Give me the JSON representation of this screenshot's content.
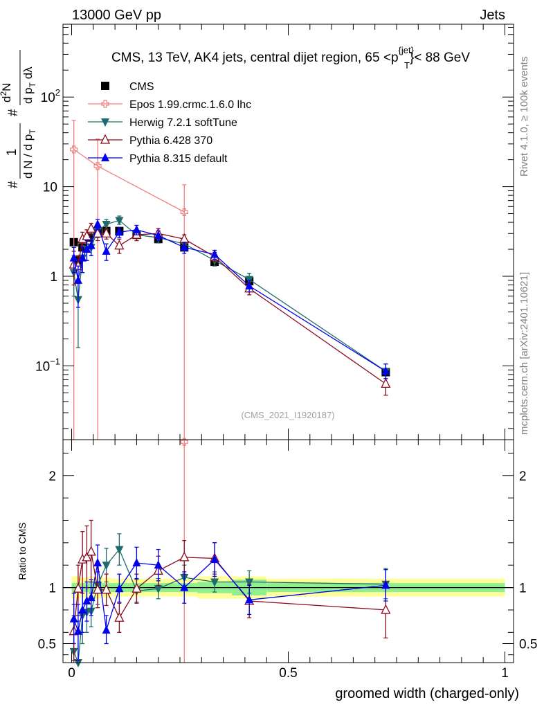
{
  "header": {
    "left": "13000 GeV pp",
    "right": "Jets"
  },
  "side_labels": {
    "rivet": "Rivet 4.1.0, ≥ 100k events",
    "mcplots": "mcplots.cern.ch [arXiv:2401.10621]"
  },
  "colors": {
    "CMS": "#000000",
    "Epos": "#f08080",
    "Herwig": "#1f6b6b",
    "Pythia6": "#8b0a1e",
    "Pythia8": "#0000ee",
    "band_inner": "#90ee90",
    "band_outer": "#ffff99"
  },
  "chart_data": [
    {
      "type": "scatter",
      "panel": "main",
      "title": "CMS, 13 TeV, AK4 jets, central dijet region, 65 <p",
      "title_sup": "{jet}",
      "title_sub": "T",
      "title_end": "}< 88 GeV",
      "watermark": "(CMS_2021_I1920187)",
      "ylabel": {
        "pre": "#",
        "frac_num": "1",
        "frac_den": "d N / d p",
        "frac_den_sub": "T",
        "hash2": "#",
        "num2": "d",
        "num2_sup": "2",
        "num2_end": "N",
        "den2": "d p",
        "den2_sub": "T",
        "den2_end": " dλ"
      },
      "xlim": [
        -0.02,
        1.02
      ],
      "ylim": [
        0.015,
        650
      ],
      "yscale": "log",
      "yticks": [
        {
          "value": 0.1,
          "label": "10",
          "sup": "−1"
        },
        {
          "value": 1,
          "label": "1",
          "sup": ""
        },
        {
          "value": 10,
          "label": "10",
          "sup": ""
        },
        {
          "value": 100,
          "label": "10",
          "sup": "2"
        }
      ],
      "legend_position": "top-left",
      "series": [
        {
          "name": "CMS",
          "key": "CMS",
          "marker": "square",
          "x": [
            0.005,
            0.015,
            0.025,
            0.04,
            0.06,
            0.08,
            0.11,
            0.15,
            0.2,
            0.26,
            0.33,
            0.41,
            0.725
          ],
          "y": [
            2.4,
            1.5,
            2.1,
            2.7,
            3.1,
            3.2,
            3.2,
            2.9,
            2.6,
            2.1,
            1.45,
            0.88,
            0.085
          ]
        },
        {
          "name": "Epos 1.99.crmc.1.6.0 lhc",
          "key": "Epos",
          "marker": "cross",
          "x": [
            0.005,
            0.06,
            0.26
          ],
          "y": [
            26,
            17,
            5.2
          ],
          "err_lo": [
            0.012,
            0.012,
            0.012
          ],
          "err_hi": [
            55,
            34,
            10.5
          ]
        },
        {
          "name": "Herwig 7.2.1 softTune",
          "key": "Herwig",
          "marker": "triangle-down",
          "x": [
            0.005,
            0.015,
            0.025,
            0.035,
            0.045,
            0.06,
            0.08,
            0.11,
            0.15,
            0.2,
            0.26,
            0.33,
            0.41,
            0.725
          ],
          "y": [
            1.1,
            0.55,
            1.6,
            2.0,
            2.1,
            3.2,
            3.8,
            4.2,
            2.9,
            2.7,
            2.3,
            1.5,
            0.92,
            0.087
          ],
          "err_lo": [
            0.6,
            0.16,
            1.1,
            1.5,
            1.7,
            2.7,
            3.3,
            3.8,
            2.5,
            2.35,
            2.0,
            1.3,
            0.78,
            0.072
          ],
          "err_hi": [
            1.7,
            1.2,
            2.2,
            2.6,
            2.6,
            3.8,
            4.3,
            4.7,
            3.3,
            3.05,
            2.6,
            1.7,
            1.08,
            0.105
          ]
        },
        {
          "name": "Pythia 6.428 370",
          "key": "Pythia6",
          "marker": "triangle-up-open",
          "x": [
            0.005,
            0.015,
            0.025,
            0.035,
            0.045,
            0.06,
            0.08,
            0.11,
            0.15,
            0.2,
            0.26,
            0.33,
            0.41,
            0.725
          ],
          "y": [
            1.35,
            1.3,
            2.6,
            2.8,
            3.4,
            3.0,
            3.0,
            2.2,
            2.9,
            3.0,
            2.6,
            1.65,
            0.73,
            0.063
          ],
          "err_lo": [
            0.8,
            0.9,
            2.1,
            2.3,
            2.9,
            2.5,
            2.6,
            1.8,
            2.5,
            2.6,
            2.3,
            1.45,
            0.62,
            0.047
          ],
          "err_hi": [
            1.9,
            1.7,
            3.1,
            3.3,
            3.9,
            3.5,
            3.4,
            2.6,
            3.3,
            3.4,
            2.9,
            1.85,
            0.84,
            0.08
          ]
        },
        {
          "name": "Pythia 8.315 default",
          "key": "Pythia8",
          "marker": "triangle-up",
          "x": [
            0.005,
            0.015,
            0.025,
            0.035,
            0.045,
            0.06,
            0.08,
            0.11,
            0.15,
            0.2,
            0.26,
            0.33,
            0.41,
            0.725
          ],
          "y": [
            1.6,
            0.9,
            1.6,
            2.0,
            2.2,
            3.8,
            1.9,
            3.1,
            3.3,
            2.85,
            2.1,
            1.75,
            0.78,
            0.087
          ],
          "err_lo": [
            1.1,
            0.45,
            1.1,
            1.5,
            1.7,
            3.3,
            1.5,
            2.7,
            2.9,
            2.5,
            1.8,
            1.55,
            0.67,
            0.072
          ],
          "err_hi": [
            2.1,
            1.3,
            2.1,
            2.5,
            2.7,
            4.3,
            2.3,
            3.5,
            3.7,
            3.2,
            2.4,
            1.95,
            0.9,
            0.105
          ]
        }
      ]
    },
    {
      "type": "scatter",
      "panel": "ratio",
      "xlabel": "groomed width (charged-only)",
      "ylabel": "Ratio to CMS",
      "xlim": [
        -0.02,
        1.02
      ],
      "ylim": [
        0.33,
        2.32
      ],
      "xticks": [
        {
          "value": 0,
          "label": "0"
        },
        {
          "value": 0.5,
          "label": "0.5"
        },
        {
          "value": 1,
          "label": "1"
        }
      ],
      "yticks": [
        {
          "value": 0.5,
          "label": "0.5"
        },
        {
          "value": 1,
          "label": "1"
        },
        {
          "value": 2,
          "label": "2"
        }
      ],
      "bands": {
        "edges": [
          0.0,
          0.01,
          0.02,
          0.03,
          0.04,
          0.05,
          0.07,
          0.09,
          0.13,
          0.17,
          0.23,
          0.29,
          0.37,
          0.45,
          1.0
        ],
        "inner_lo": [
          0.96,
          0.96,
          0.96,
          0.96,
          0.95,
          0.95,
          0.96,
          0.96,
          0.96,
          0.96,
          0.96,
          0.95,
          0.93,
          0.96
        ],
        "inner_hi": [
          1.04,
          1.04,
          1.04,
          1.04,
          1.05,
          1.05,
          1.04,
          1.04,
          1.04,
          1.04,
          1.04,
          1.05,
          1.07,
          1.04
        ],
        "outer_lo": [
          0.9,
          0.9,
          0.91,
          0.91,
          0.9,
          0.9,
          0.91,
          0.92,
          0.92,
          0.92,
          0.92,
          0.9,
          0.9,
          0.92
        ],
        "outer_hi": [
          1.1,
          1.1,
          1.09,
          1.09,
          1.1,
          1.1,
          1.09,
          1.08,
          1.08,
          1.08,
          1.08,
          1.1,
          1.1,
          1.08
        ]
      },
      "series": [
        {
          "name": "Epos 1.99.crmc.1.6.0 lhc",
          "key": "Epos",
          "marker": "cross",
          "x": [
            0.26
          ],
          "y": [
            2.3
          ],
          "err_lo": [
            0.33
          ],
          "err_hi": [
            2.4
          ]
        },
        {
          "name": "Herwig 7.2.1 softTune",
          "key": "Herwig",
          "marker": "triangle-down",
          "x": [
            0.005,
            0.015,
            0.025,
            0.035,
            0.045,
            0.06,
            0.08,
            0.11,
            0.15,
            0.2,
            0.26,
            0.33,
            0.41,
            0.725
          ],
          "y": [
            0.43,
            0.33,
            0.75,
            0.78,
            0.79,
            1.02,
            1.2,
            1.34,
            0.97,
            0.99,
            1.09,
            1.05,
            1.05,
            1.03
          ],
          "err_lo": [
            0.33,
            0.33,
            0.5,
            0.6,
            0.65,
            0.85,
            1.05,
            1.2,
            0.87,
            0.9,
            0.98,
            0.96,
            0.95,
            0.9
          ],
          "err_hi": [
            0.75,
            0.7,
            1.0,
            1.0,
            0.95,
            1.2,
            1.35,
            1.48,
            1.07,
            1.08,
            1.2,
            1.14,
            1.15,
            1.17
          ]
        },
        {
          "name": "Pythia 6.428 370",
          "key": "Pythia6",
          "marker": "triangle-up-open",
          "x": [
            0.005,
            0.015,
            0.025,
            0.035,
            0.045,
            0.06,
            0.08,
            0.11,
            0.15,
            0.2,
            0.26,
            0.33,
            0.41,
            0.725
          ],
          "y": [
            0.61,
            0.99,
            1.25,
            1.27,
            1.32,
            0.98,
            0.98,
            0.73,
            0.99,
            1.15,
            1.27,
            1.26,
            0.88,
            0.8
          ],
          "err_lo": [
            0.35,
            0.75,
            0.95,
            1.0,
            1.05,
            0.82,
            0.84,
            0.6,
            0.86,
            1.02,
            1.12,
            1.12,
            0.73,
            0.55
          ],
          "err_hi": [
            0.85,
            1.2,
            1.5,
            1.55,
            1.6,
            1.14,
            1.12,
            0.86,
            1.12,
            1.28,
            1.42,
            1.4,
            1.03,
            1.05
          ]
        },
        {
          "name": "Pythia 8.315 default",
          "key": "Pythia8",
          "marker": "triangle-up",
          "x": [
            0.005,
            0.015,
            0.025,
            0.035,
            0.045,
            0.06,
            0.08,
            0.11,
            0.15,
            0.2,
            0.26,
            0.33,
            0.41,
            0.725
          ],
          "y": [
            0.72,
            0.61,
            0.8,
            0.88,
            0.91,
            1.22,
            0.62,
            0.99,
            1.22,
            1.2,
            1.0,
            1.25,
            0.89,
            1.02
          ],
          "err_lo": [
            0.5,
            0.35,
            0.6,
            0.7,
            0.75,
            1.05,
            0.5,
            0.87,
            1.08,
            1.06,
            0.86,
            1.1,
            0.76,
            0.88
          ],
          "err_hi": [
            0.95,
            0.85,
            1.0,
            1.05,
            1.07,
            1.38,
            0.75,
            1.12,
            1.36,
            1.34,
            1.14,
            1.4,
            1.02,
            1.16
          ]
        }
      ]
    }
  ]
}
